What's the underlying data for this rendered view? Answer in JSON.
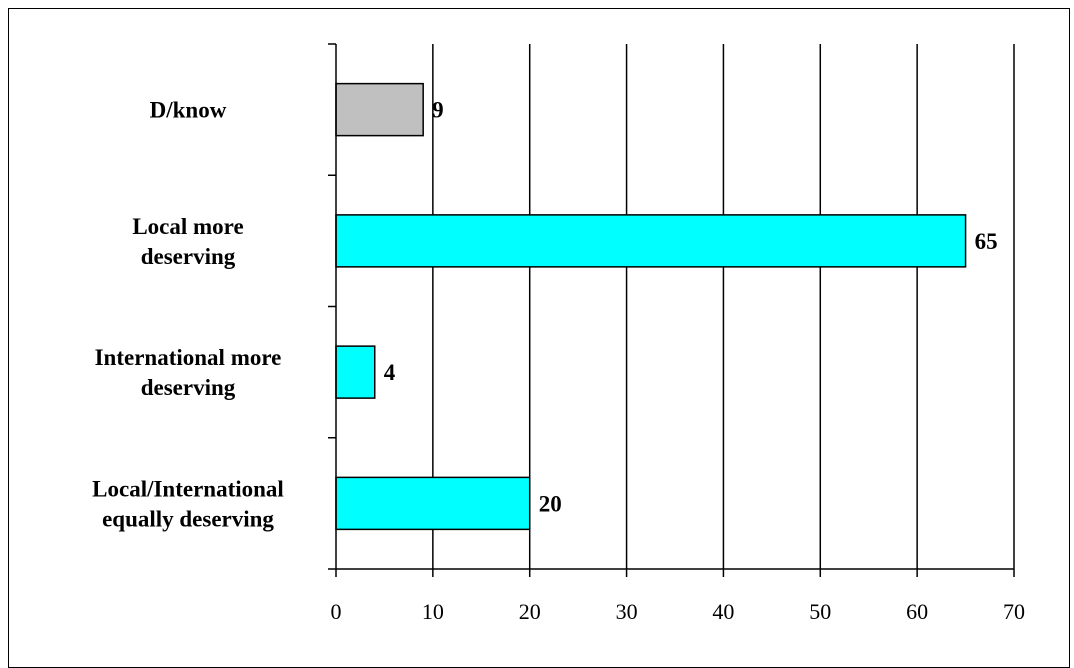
{
  "chart_data": {
    "type": "bar",
    "orientation": "horizontal",
    "categories": [
      [
        "Local/International",
        "equally deserving"
      ],
      [
        "International more",
        "deserving"
      ],
      [
        "Local more",
        "deserving"
      ],
      [
        "D/know"
      ]
    ],
    "values": [
      20,
      4,
      65,
      9
    ],
    "value_labels": [
      "20",
      "4",
      "65",
      "9"
    ],
    "bar_colors": [
      "#00FFFF",
      "#00FFFF",
      "#00FFFF",
      "#C0C0C0"
    ],
    "xlim": [
      0,
      70
    ],
    "xticks": [
      0,
      10,
      20,
      30,
      40,
      50,
      60,
      70
    ],
    "xtick_labels": [
      "0",
      "10",
      "20",
      "30",
      "40",
      "50",
      "60",
      "70"
    ],
    "grid": "vertical",
    "legend": "none"
  }
}
